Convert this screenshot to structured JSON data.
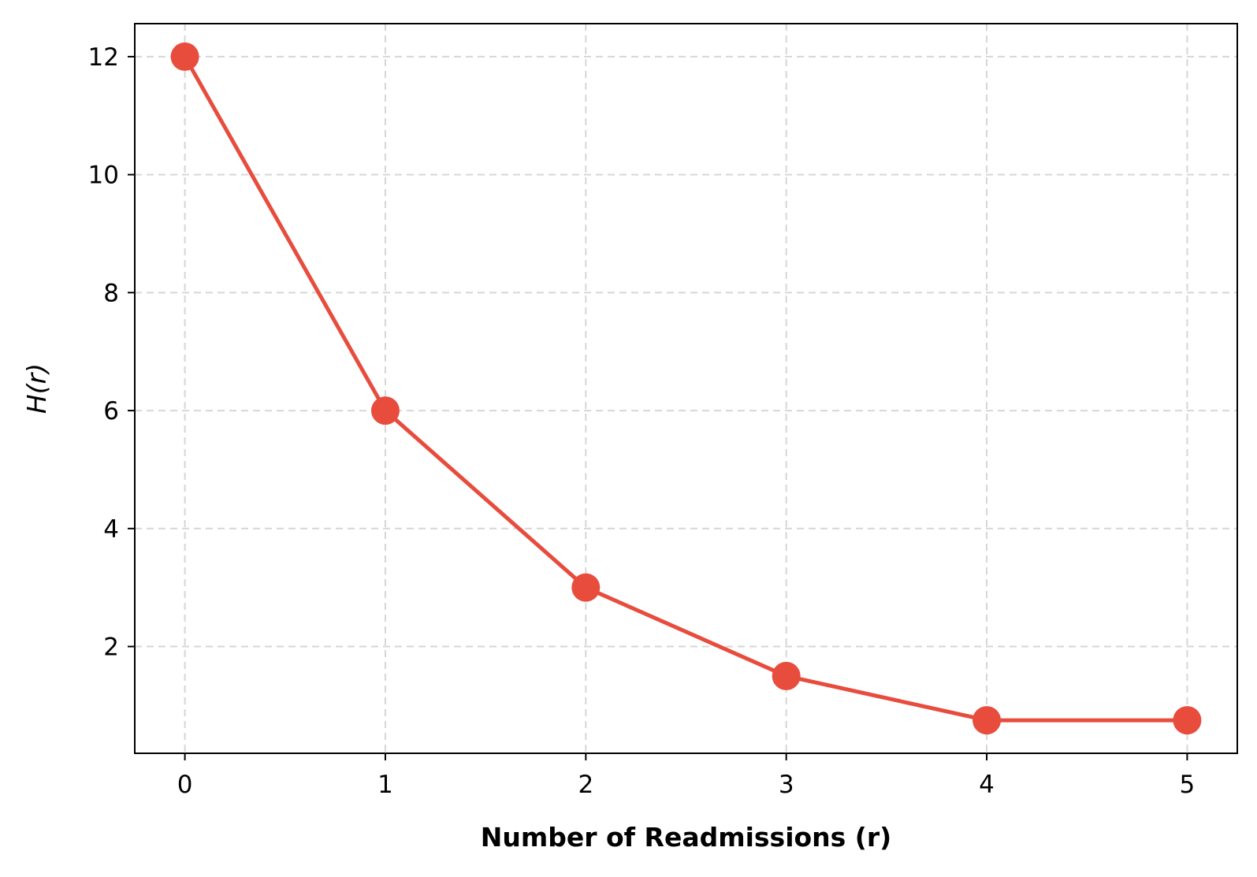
{
  "chart_data": {
    "type": "line",
    "title": "",
    "xlabel": "Number of Readmissions (r)",
    "ylabel": "H(r)",
    "x": [
      0,
      1,
      2,
      3,
      4,
      5
    ],
    "series": [
      {
        "values": [
          12,
          6,
          3,
          1.5,
          0.75,
          0.75
        ],
        "color": "#e84c3d"
      }
    ],
    "xlim": [
      -0.25,
      5.25
    ],
    "ylim": [
      0.19,
      12.56
    ],
    "xticks": [
      "0",
      "1",
      "2",
      "3",
      "4",
      "5"
    ],
    "yticks": [
      "2",
      "4",
      "6",
      "8",
      "10",
      "12"
    ],
    "grid": true,
    "legend": "none"
  }
}
